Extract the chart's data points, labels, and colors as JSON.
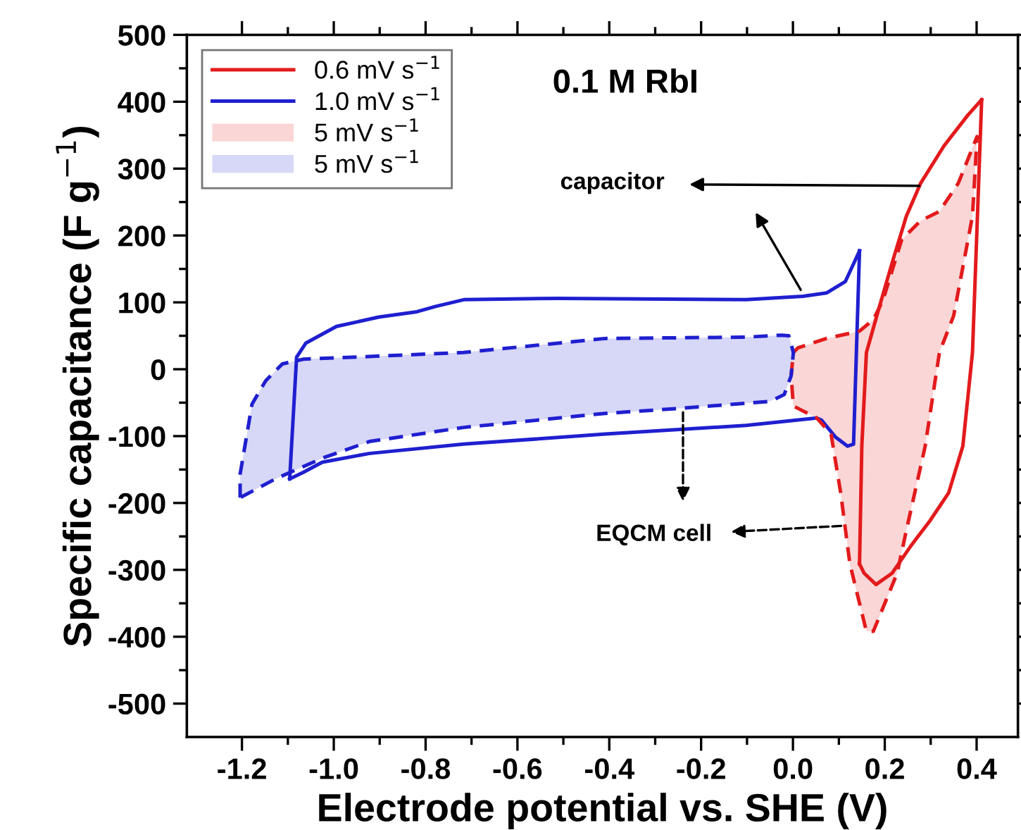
{
  "chart_data": {
    "type": "line",
    "xlabel": "Electrode potential vs. SHE (V)",
    "ylabel": "Specific capacitance (F g$^{−1}$)",
    "xlim": [
      -1.32,
      0.49
    ],
    "ylim": [
      -550,
      500
    ],
    "xticks": [
      -1.2,
      {
        "value": -1.1,
        "label": null
      },
      {
        "value": -1.0,
        "label": "-1.0"
      },
      {
        "value": -0.9,
        "label": null
      },
      -0.8,
      {
        "value": -0.7,
        "label": null
      },
      -0.6,
      {
        "value": -0.5,
        "label": null
      },
      -0.4,
      {
        "value": -0.3,
        "label": null
      },
      -0.2,
      {
        "value": -0.1,
        "label": null
      },
      {
        "value": 0.0,
        "label": "0.0"
      },
      {
        "value": 0.1,
        "label": null
      },
      0.2,
      {
        "value": 0.3,
        "label": null
      },
      0.4
    ],
    "yticks": [
      -500,
      {
        "value": -450,
        "label": null
      },
      -400,
      {
        "value": -350,
        "label": null
      },
      -300,
      {
        "value": -250,
        "label": null
      },
      -200,
      {
        "value": -150,
        "label": null
      },
      -100,
      {
        "value": -50,
        "label": null
      },
      0,
      {
        "value": 50,
        "label": null
      },
      100,
      {
        "value": 150,
        "label": null
      },
      200,
      {
        "value": 250,
        "label": null
      },
      300,
      {
        "value": 350,
        "label": null
      },
      400,
      {
        "value": 450,
        "label": null
      },
      500
    ],
    "legend": "top left",
    "grid": false,
    "series": [
      {
        "name": "0.6 mV s$^{−1}$",
        "color": "#e31a1c",
        "x": [
          0.145,
          0.15,
          0.16,
          0.186,
          0.216,
          0.247,
          0.278,
          0.329,
          0.381,
          0.411
        ],
        "values": [
          -291,
          -115,
          25,
          88,
          159,
          229,
          278,
          334,
          380,
          403
        ]
      },
      {
        "color": "#e31a1c",
        "x": [
          0.145,
          0.155,
          0.181,
          0.216,
          0.258,
          0.298,
          0.339,
          0.37,
          0.391,
          0.411
        ],
        "values": [
          -291,
          -305,
          -322,
          -305,
          -263,
          -227,
          -185,
          -115,
          25,
          403
        ]
      },
      {
        "name": "1.0 mV s$^{−1}$",
        "color": "#1f1fd0",
        "x": [
          -1.096,
          -1.081,
          -1.061,
          -0.994,
          -0.902,
          -0.819,
          -0.778,
          -0.717,
          -0.512,
          -0.102,
          0.022,
          0.073,
          0.114,
          0.145
        ],
        "values": [
          -164,
          18,
          39,
          64,
          78,
          86,
          94,
          104,
          106,
          104,
          109,
          114,
          131,
          177
        ]
      },
      {
        "color": "#1f1fd0",
        "x": [
          -1.096,
          -1.066,
          -1.025,
          -0.923,
          -0.717,
          -0.409,
          -0.102,
          0.052,
          0.062,
          0.092,
          0.119,
          0.132,
          0.145
        ],
        "values": [
          -164,
          -154,
          -139,
          -126,
          -112,
          -97,
          -84,
          -73,
          -76,
          -101,
          -115,
          -112,
          177
        ]
      },
      {
        "name": "5 mV s$^{−1}$",
        "type": "area",
        "line_style": "dashed",
        "color": "#e31a1c",
        "x": [
          0.001,
          0.011,
          0.073,
          0.145,
          0.175,
          0.196,
          0.237,
          0.278,
          0.319,
          0.36,
          0.401,
          0.391,
          0.35,
          0.319,
          0.288,
          0.247,
          0.227,
          0.175,
          0.16,
          0.124,
          0.104,
          0.083,
          0.052,
          0.001,
          -0.004,
          0.001
        ],
        "values": [
          25,
          32,
          46,
          57,
          74,
          103,
          194,
          222,
          236,
          278,
          348,
          229,
          80,
          25,
          -115,
          -241,
          -305,
          -392,
          -392,
          -291,
          -185,
          -97,
          -73,
          -55,
          -10,
          25
        ]
      },
      {
        "name": "5 mV s$^{−1}$",
        "type": "area",
        "line_style": "dashed",
        "color": "#1f1fd0",
        "x": [
          -1.204,
          -1.204,
          -1.178,
          -1.148,
          -1.112,
          -1.066,
          -0.717,
          -0.409,
          -0.102,
          -0.025,
          -0.009,
          0.001,
          -0.004,
          -0.019,
          -0.05,
          -0.255,
          -0.409,
          -0.717,
          -0.922,
          -1.025,
          -1.127,
          -1.204
        ],
        "values": [
          -192,
          -157,
          -52,
          -17,
          8,
          15,
          25,
          46,
          48,
          51,
          50,
          25,
          -10,
          -38,
          -48,
          -59,
          -66,
          -87,
          -108,
          -133,
          -164,
          -192
        ]
      }
    ],
    "annotations": [
      "0.1 M RbI",
      "capacitor",
      "EQCM cell"
    ]
  }
}
